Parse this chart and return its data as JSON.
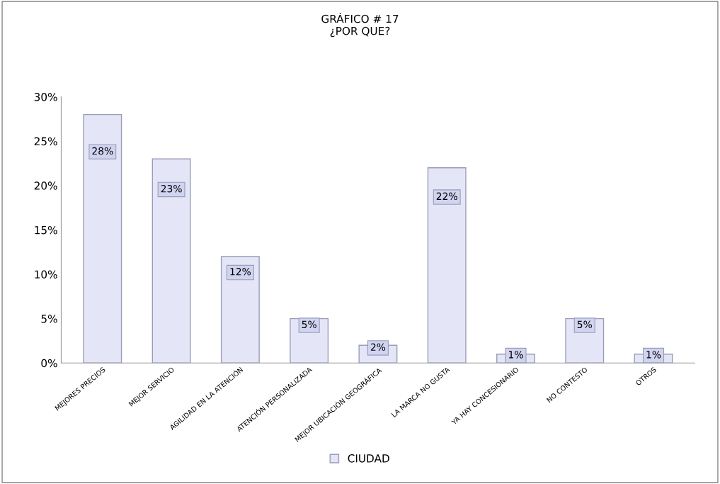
{
  "chart_data": {
    "type": "bar",
    "title": "GRÁFICO # 17",
    "subtitle": "¿POR QUE?",
    "categories": [
      "MEJORES PRECIOS",
      "MEJOR SERVICIO",
      "AGILIDAD EN LA ATENCIÓN",
      "ATENCIÓN PERSONALIZADA",
      "MEJOR UBICACIÓN GEOGRÁFICA",
      "LA MARCA NO GUSTA",
      "YA HAY CONCESIONARIO",
      "NO CONTESTO",
      "OTROS"
    ],
    "series": [
      {
        "name": "CIUDAD",
        "color": "#e4e6f7",
        "values": [
          28,
          23,
          12,
          5,
          2,
          22,
          1,
          5,
          1
        ],
        "value_labels": [
          "28%",
          "23%",
          "12%",
          "5%",
          "2%",
          "22%",
          "1%",
          "5%",
          "1%"
        ]
      }
    ],
    "ylim": [
      0,
      30
    ],
    "yticks": [
      {
        "value": 0,
        "label": "0%"
      },
      {
        "value": 5,
        "label": "5%"
      },
      {
        "value": 10,
        "label": "10%"
      },
      {
        "value": 15,
        "label": "15%"
      },
      {
        "value": 20,
        "label": "20%"
      },
      {
        "value": 25,
        "label": "25%"
      },
      {
        "value": 30,
        "label": "30%"
      }
    ],
    "grid": false,
    "legend": "bottom"
  }
}
